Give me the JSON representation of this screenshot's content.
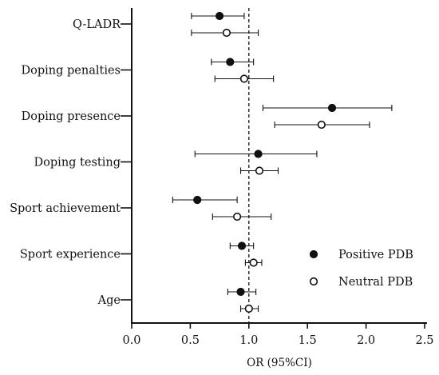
{
  "chart_data": {
    "type": "scatter",
    "subtype": "forest-plot",
    "xlabel": "OR (95%CI)",
    "xlim": [
      0.0,
      2.5
    ],
    "xticks": [
      0.0,
      0.5,
      1.0,
      1.5,
      2.0,
      2.5
    ],
    "xtick_labels": [
      "0.0",
      "0.5",
      "1.0",
      "1.5",
      "2.0",
      "2.5"
    ],
    "reference_line": 1.0,
    "grid": false,
    "legend_position": "bottom-right",
    "categories": [
      "Q-LADR",
      "Doping penalties",
      "Doping presence",
      "Doping testing",
      "Sport achievement",
      "Sport experience",
      "Age"
    ],
    "series": [
      {
        "name": "Positive PDB",
        "marker": "filled-circle",
        "color": "#111111",
        "or": [
          0.75,
          0.84,
          1.71,
          1.08,
          0.56,
          0.94,
          0.93
        ],
        "lower": [
          0.51,
          0.68,
          1.12,
          0.54,
          0.35,
          0.84,
          0.82
        ],
        "upper": [
          0.96,
          1.04,
          2.22,
          1.58,
          0.9,
          1.04,
          1.06
        ]
      },
      {
        "name": "Neutral PDB",
        "marker": "open-circle",
        "color": "#111111",
        "or": [
          0.81,
          0.96,
          1.62,
          1.09,
          0.9,
          1.04,
          1.0
        ],
        "lower": [
          0.51,
          0.71,
          1.22,
          0.93,
          0.69,
          0.97,
          0.93
        ],
        "upper": [
          1.08,
          1.21,
          2.03,
          1.25,
          1.19,
          1.11,
          1.08
        ]
      }
    ]
  }
}
